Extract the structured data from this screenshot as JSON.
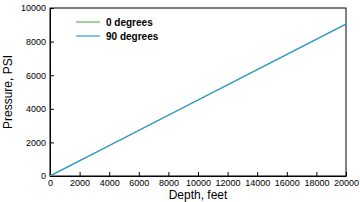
{
  "chart_data": {
    "type": "line",
    "x_label": "Depth, feet",
    "y_label": "Pressure, PSI",
    "x": [
      0,
      5000,
      10000,
      15000,
      20000
    ],
    "series": [
      {
        "name": "0 degrees",
        "color": "#5cb85c",
        "values": [
          0,
          2260,
          4520,
          6780,
          9040
        ]
      },
      {
        "name": "90 degrees",
        "color": "#3399dd",
        "values": [
          0,
          2262,
          4525,
          6787,
          9050
        ]
      }
    ],
    "xlim": [
      0,
      20000
    ],
    "xticks": [
      0,
      2000,
      4000,
      6000,
      8000,
      10000,
      12000,
      14000,
      16000,
      18000,
      20000
    ],
    "ylim": [
      0,
      10000
    ],
    "yticks": [
      0,
      2000,
      4000,
      6000,
      8000,
      10000
    ],
    "legend": "upper left",
    "grid": false
  }
}
